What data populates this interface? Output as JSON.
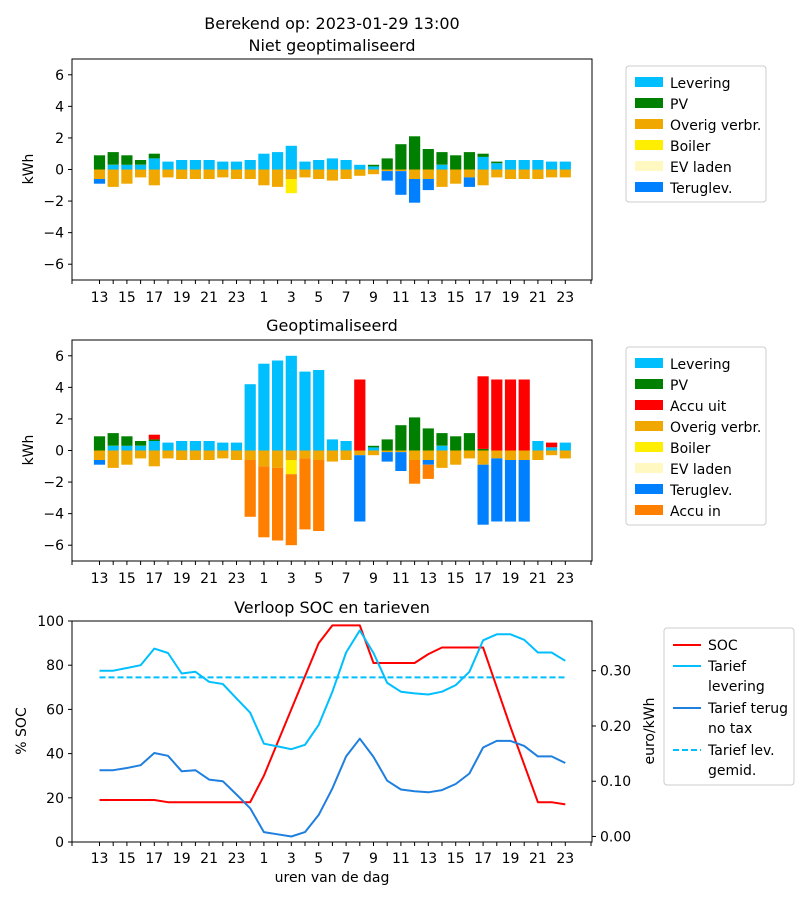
{
  "suptitle": "Berekend op: 2023-01-29 13:00",
  "colors": {
    "levering": "#00bfff",
    "pv": "#008000",
    "accu_uit": "#ff0000",
    "overig": "#f0a800",
    "boiler": "#ffee00",
    "ev": "#fff8c0",
    "teruglev": "#0080ff",
    "accu_in": "#ff8000",
    "soc": "#ff0000",
    "tarief_lev": "#00bfff",
    "tarief_terug": "#1f7fdf",
    "tarief_gem": "#00bfff"
  },
  "chart_data": [
    {
      "type": "bar",
      "title": "Niet geoptimaliseerd",
      "ylabel": "kWh",
      "ylim": [
        -7,
        7
      ],
      "yticks": [
        "6",
        "4",
        "2",
        "0",
        "−2",
        "−4",
        "−6"
      ],
      "xticklabels": [
        "13",
        "15",
        "17",
        "19",
        "21",
        "23",
        "1",
        "3",
        "5",
        "7",
        "9",
        "11",
        "13",
        "15",
        "17",
        "19",
        "21",
        "23"
      ],
      "hours": [
        13,
        14,
        15,
        16,
        17,
        18,
        19,
        20,
        21,
        22,
        23,
        0,
        1,
        2,
        3,
        4,
        5,
        6,
        7,
        8,
        9,
        10,
        11,
        12,
        13,
        14,
        15,
        16,
        17,
        18,
        19,
        20,
        21,
        22,
        23
      ],
      "legend": [
        {
          "label": "Levering",
          "color_key": "levering"
        },
        {
          "label": "PV",
          "color_key": "pv"
        },
        {
          "label": "Overig verbr.",
          "color_key": "overig"
        },
        {
          "label": "Boiler",
          "color_key": "boiler"
        },
        {
          "label": "EV laden",
          "color_key": "ev"
        },
        {
          "label": "Teruglev.",
          "color_key": "teruglev"
        }
      ],
      "series": [
        {
          "name": "Levering",
          "sign": 1,
          "color_key": "levering",
          "values": [
            0,
            0.3,
            0.3,
            0.3,
            0.7,
            0.5,
            0.6,
            0.6,
            0.6,
            0.5,
            0.5,
            0.6,
            1.0,
            1.1,
            1.5,
            0.5,
            0.6,
            0.7,
            0.6,
            0.3,
            0.2,
            0,
            0,
            0,
            0,
            0.3,
            0,
            0,
            0.8,
            0.4,
            0.6,
            0.6,
            0.6,
            0.5,
            0.5
          ]
        },
        {
          "name": "PV",
          "sign": 1,
          "color_key": "pv",
          "values": [
            0.9,
            0.8,
            0.6,
            0.3,
            0.3,
            0,
            0,
            0,
            0,
            0,
            0,
            0,
            0,
            0,
            0,
            0,
            0,
            0,
            0,
            0,
            0.1,
            0.7,
            1.6,
            2.1,
            1.3,
            0.8,
            0.9,
            1.1,
            0.2,
            0.1,
            0,
            0,
            0,
            0,
            0
          ]
        },
        {
          "name": "Overig verbr.",
          "sign": -1,
          "color_key": "overig",
          "values": [
            0.6,
            1.1,
            0.9,
            0.5,
            1.0,
            0.5,
            0.6,
            0.6,
            0.6,
            0.5,
            0.6,
            0.6,
            1.0,
            1.1,
            0.6,
            0.5,
            0.6,
            0.7,
            0.6,
            0.4,
            0.3,
            0.1,
            0.1,
            0.6,
            0.6,
            1.1,
            0.9,
            0.5,
            1.0,
            0.5,
            0.6,
            0.6,
            0.6,
            0.5,
            0.5
          ]
        },
        {
          "name": "Boiler",
          "sign": -1,
          "color_key": "boiler",
          "values": [
            0,
            0,
            0,
            0,
            0,
            0,
            0,
            0,
            0,
            0,
            0,
            0,
            0,
            0,
            0.9,
            0,
            0,
            0,
            0,
            0,
            0,
            0,
            0,
            0,
            0,
            0,
            0,
            0,
            0,
            0,
            0,
            0,
            0,
            0,
            0
          ]
        },
        {
          "name": "EV laden",
          "sign": -1,
          "color_key": "ev",
          "values": [
            0,
            0,
            0,
            0,
            0,
            0,
            0,
            0,
            0,
            0,
            0,
            0,
            0,
            0,
            0,
            0,
            0,
            0,
            0,
            0,
            0,
            0,
            0,
            0,
            0,
            0,
            0,
            0,
            0,
            0,
            0,
            0,
            0,
            0,
            0
          ]
        },
        {
          "name": "Teruglev.",
          "sign": -1,
          "color_key": "teruglev",
          "values": [
            0.3,
            0,
            0,
            0,
            0,
            0,
            0,
            0,
            0,
            0,
            0,
            0,
            0,
            0,
            0,
            0,
            0,
            0,
            0,
            0,
            0,
            0.6,
            1.5,
            1.5,
            0.7,
            0,
            0,
            0.6,
            0,
            0,
            0,
            0,
            0,
            0,
            0
          ]
        }
      ]
    },
    {
      "type": "bar",
      "title": "Geoptimaliseerd",
      "ylabel": "kWh",
      "ylim": [
        -7,
        7
      ],
      "yticks": [
        "6",
        "4",
        "2",
        "0",
        "−2",
        "−4",
        "−6"
      ],
      "xticklabels": [
        "13",
        "15",
        "17",
        "19",
        "21",
        "23",
        "1",
        "3",
        "5",
        "7",
        "9",
        "11",
        "13",
        "15",
        "17",
        "19",
        "21",
        "23"
      ],
      "hours": [
        13,
        14,
        15,
        16,
        17,
        18,
        19,
        20,
        21,
        22,
        23,
        0,
        1,
        2,
        3,
        4,
        5,
        6,
        7,
        8,
        9,
        10,
        11,
        12,
        13,
        14,
        15,
        16,
        17,
        18,
        19,
        20,
        21,
        22,
        23
      ],
      "legend": [
        {
          "label": "Levering",
          "color_key": "levering"
        },
        {
          "label": "PV",
          "color_key": "pv"
        },
        {
          "label": "Accu uit",
          "color_key": "accu_uit"
        },
        {
          "label": "Overig verbr.",
          "color_key": "overig"
        },
        {
          "label": "Boiler",
          "color_key": "boiler"
        },
        {
          "label": "EV laden",
          "color_key": "ev"
        },
        {
          "label": "Teruglev.",
          "color_key": "teruglev"
        },
        {
          "label": "Accu in",
          "color_key": "accu_in"
        }
      ],
      "series": [
        {
          "name": "Levering",
          "sign": 1,
          "color_key": "levering",
          "values": [
            0,
            0.3,
            0.3,
            0.3,
            0.6,
            0.5,
            0.6,
            0.6,
            0.6,
            0.5,
            0.5,
            4.2,
            5.5,
            5.7,
            6.0,
            5.0,
            5.1,
            0.7,
            0.6,
            0,
            0.2,
            0,
            0,
            0,
            0,
            0.3,
            0,
            0,
            0,
            0,
            0,
            0,
            0.6,
            0.2,
            0.5
          ]
        },
        {
          "name": "PV",
          "sign": 1,
          "color_key": "pv",
          "values": [
            0.9,
            0.8,
            0.6,
            0.3,
            0.1,
            0,
            0,
            0,
            0,
            0,
            0,
            0,
            0,
            0,
            0,
            0,
            0,
            0,
            0,
            0,
            0.1,
            0.7,
            1.6,
            2.1,
            1.4,
            0.8,
            0.9,
            1.1,
            0.1,
            0,
            0,
            0,
            0,
            0,
            0
          ]
        },
        {
          "name": "Accu uit",
          "sign": 1,
          "color_key": "accu_uit",
          "values": [
            0,
            0,
            0,
            0,
            0.3,
            0,
            0,
            0,
            0,
            0,
            0,
            0,
            0,
            0,
            0,
            0,
            0,
            0,
            0,
            4.5,
            0,
            0,
            0,
            0,
            0,
            0,
            0,
            0,
            4.6,
            4.5,
            4.5,
            4.5,
            0,
            0.3,
            0
          ]
        },
        {
          "name": "Overig verbr.",
          "sign": -1,
          "color_key": "overig",
          "values": [
            0.6,
            1.1,
            0.9,
            0.5,
            1.0,
            0.5,
            0.6,
            0.6,
            0.6,
            0.5,
            0.6,
            0.6,
            1.0,
            1.1,
            0.6,
            0.5,
            0.6,
            0.7,
            0.6,
            0.3,
            0.3,
            0.1,
            0.1,
            0.6,
            0.6,
            1.1,
            0.9,
            0.5,
            0.9,
            0.5,
            0.6,
            0.6,
            0.6,
            0.3,
            0.5
          ]
        },
        {
          "name": "Boiler",
          "sign": -1,
          "color_key": "boiler",
          "values": [
            0,
            0,
            0,
            0,
            0,
            0,
            0,
            0,
            0,
            0,
            0,
            0,
            0,
            0,
            0.9,
            0,
            0,
            0,
            0,
            0,
            0,
            0,
            0,
            0,
            0,
            0,
            0,
            0,
            0,
            0,
            0,
            0,
            0,
            0,
            0
          ]
        },
        {
          "name": "EV laden",
          "sign": -1,
          "color_key": "ev",
          "values": [
            0,
            0,
            0,
            0,
            0,
            0,
            0,
            0,
            0,
            0,
            0,
            0,
            0,
            0,
            0,
            0,
            0,
            0,
            0,
            0,
            0,
            0,
            0,
            0,
            0,
            0,
            0,
            0,
            0,
            0,
            0,
            0,
            0,
            0,
            0
          ]
        },
        {
          "name": "Teruglev.",
          "sign": -1,
          "color_key": "teruglev",
          "values": [
            0.3,
            0,
            0,
            0,
            0,
            0,
            0,
            0,
            0,
            0,
            0,
            0,
            0,
            0,
            0,
            0,
            0,
            0,
            0,
            4.2,
            0,
            0.6,
            1.2,
            0,
            0.3,
            0,
            0,
            0,
            3.8,
            4.0,
            3.9,
            3.9,
            0,
            0,
            0
          ]
        },
        {
          "name": "Accu in",
          "sign": -1,
          "color_key": "accu_in",
          "values": [
            0,
            0,
            0,
            0,
            0,
            0,
            0,
            0,
            0,
            0,
            0,
            3.6,
            4.5,
            4.6,
            4.5,
            4.5,
            4.5,
            0,
            0,
            0,
            0,
            0,
            0,
            1.5,
            0.9,
            0,
            0,
            0,
            0,
            0,
            0,
            0,
            0,
            0,
            0
          ]
        }
      ]
    },
    {
      "type": "line",
      "title": "Verloop SOC en tarieven",
      "xlabel": "uren van de dag",
      "ylabel": "% SOC",
      "y2label": "euro/kWh",
      "ylim": [
        0,
        100
      ],
      "y2lim": [
        -0.01,
        0.39
      ],
      "yticks": [
        0,
        20,
        40,
        60,
        80,
        100
      ],
      "y2ticks": [
        "0.00",
        "0.10",
        "0.20",
        "0.30"
      ],
      "y2tickvalues": [
        0.0,
        0.1,
        0.2,
        0.3
      ],
      "xticklabels": [
        "13",
        "15",
        "17",
        "19",
        "21",
        "23",
        "1",
        "3",
        "5",
        "7",
        "9",
        "11",
        "13",
        "15",
        "17",
        "19",
        "21",
        "23"
      ],
      "legend": [
        {
          "label": "SOC",
          "color_key": "soc",
          "dashed": false
        },
        {
          "label": "Tarief\nlevering",
          "color_key": "tarief_lev",
          "dashed": false
        },
        {
          "label": "Tarief terug\nno tax",
          "color_key": "tarief_terug",
          "dashed": false
        },
        {
          "label": "Tarief lev.\ngemid.",
          "color_key": "tarief_gem",
          "dashed": true
        }
      ],
      "series": [
        {
          "name": "SOC",
          "axis": "left",
          "color_key": "soc",
          "values": [
            19,
            19,
            19,
            19,
            19,
            18,
            18,
            18,
            18,
            18,
            18,
            18,
            30,
            45,
            60,
            75,
            90,
            98,
            98,
            98,
            81,
            81,
            81,
            81,
            85,
            88,
            88,
            88,
            88,
            70,
            52,
            35,
            18,
            18,
            17
          ]
        },
        {
          "name": "Tarief levering",
          "axis": "right",
          "color_key": "tarief_lev",
          "values": [
            0.3,
            0.3,
            0.305,
            0.31,
            0.34,
            0.332,
            0.295,
            0.298,
            0.28,
            0.276,
            0.25,
            0.224,
            0.168,
            0.163,
            0.158,
            0.166,
            0.202,
            0.262,
            0.333,
            0.373,
            0.332,
            0.278,
            0.262,
            0.259,
            0.257,
            0.262,
            0.274,
            0.298,
            0.355,
            0.366,
            0.366,
            0.356,
            0.333,
            0.333,
            0.318
          ]
        },
        {
          "name": "Tarief terug no tax",
          "axis": "right",
          "color_key": "tarief_terug",
          "values": [
            0.12,
            0.12,
            0.124,
            0.129,
            0.151,
            0.146,
            0.118,
            0.12,
            0.103,
            0.1,
            0.076,
            0.051,
            0.008,
            0.004,
            0.0,
            0.008,
            0.039,
            0.087,
            0.145,
            0.177,
            0.144,
            0.101,
            0.085,
            0.082,
            0.08,
            0.084,
            0.095,
            0.114,
            0.161,
            0.173,
            0.173,
            0.164,
            0.145,
            0.145,
            0.133
          ]
        },
        {
          "name": "Tarief lev. gemid.",
          "axis": "right",
          "color_key": "tarief_gem",
          "dashed": true,
          "values": [
            0.288,
            0.288,
            0.288,
            0.288,
            0.288,
            0.288,
            0.288,
            0.288,
            0.288,
            0.288,
            0.288,
            0.288,
            0.288,
            0.288,
            0.288,
            0.288,
            0.288,
            0.288,
            0.288,
            0.288,
            0.288,
            0.288,
            0.288,
            0.288,
            0.288,
            0.288,
            0.288,
            0.288,
            0.288,
            0.288,
            0.288,
            0.288,
            0.288,
            0.288,
            0.288
          ]
        }
      ]
    }
  ]
}
